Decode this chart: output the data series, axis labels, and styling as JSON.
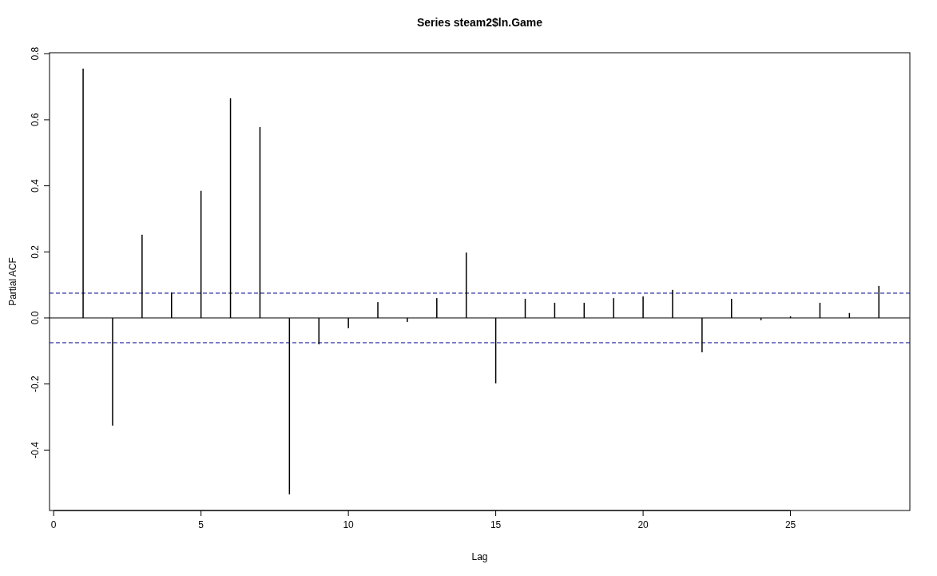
{
  "chart_data": {
    "type": "bar",
    "title": "Series  steam2$ln.Game",
    "xlabel": "Lag",
    "ylabel": "Partial ACF",
    "x": [
      1,
      2,
      3,
      4,
      5,
      6,
      7,
      8,
      9,
      10,
      11,
      12,
      13,
      14,
      15,
      16,
      17,
      18,
      19,
      20,
      21,
      22,
      23,
      24,
      25,
      26,
      27,
      28
    ],
    "values": [
      0.755,
      -0.326,
      0.252,
      0.077,
      0.385,
      0.665,
      0.578,
      -0.534,
      -0.08,
      -0.031,
      0.048,
      -0.012,
      0.06,
      0.198,
      -0.198,
      0.058,
      0.046,
      0.046,
      0.06,
      0.065,
      0.085,
      -0.104,
      0.058,
      -0.007,
      0.005,
      0.046,
      0.015,
      0.097
    ],
    "color": "#000000",
    "xlim": [
      -0.14,
      29.05
    ],
    "ylim": [
      -0.583,
      0.803
    ],
    "xticks": [
      0,
      5,
      10,
      15,
      20,
      25
    ],
    "yticks": [
      {
        "value": -0.4,
        "label": "-0.4"
      },
      {
        "value": -0.2,
        "label": "-0.2"
      },
      {
        "value": 0,
        "label": "0.0"
      },
      {
        "value": 0.2,
        "label": "0.2"
      },
      {
        "value": 0.4,
        "label": "0.4"
      },
      {
        "value": 0.6,
        "label": "0.6"
      },
      {
        "value": 0.8,
        "label": "0.8"
      }
    ],
    "ref_lines": [
      {
        "axis": "y",
        "value": 0,
        "color": "#000000",
        "line_style": "solid"
      },
      {
        "axis": "y",
        "value": 0.075,
        "color": "#00008b",
        "line_style": "dashed"
      },
      {
        "axis": "y",
        "value": -0.075,
        "color": "#00008b",
        "line_style": "dashed"
      }
    ]
  }
}
